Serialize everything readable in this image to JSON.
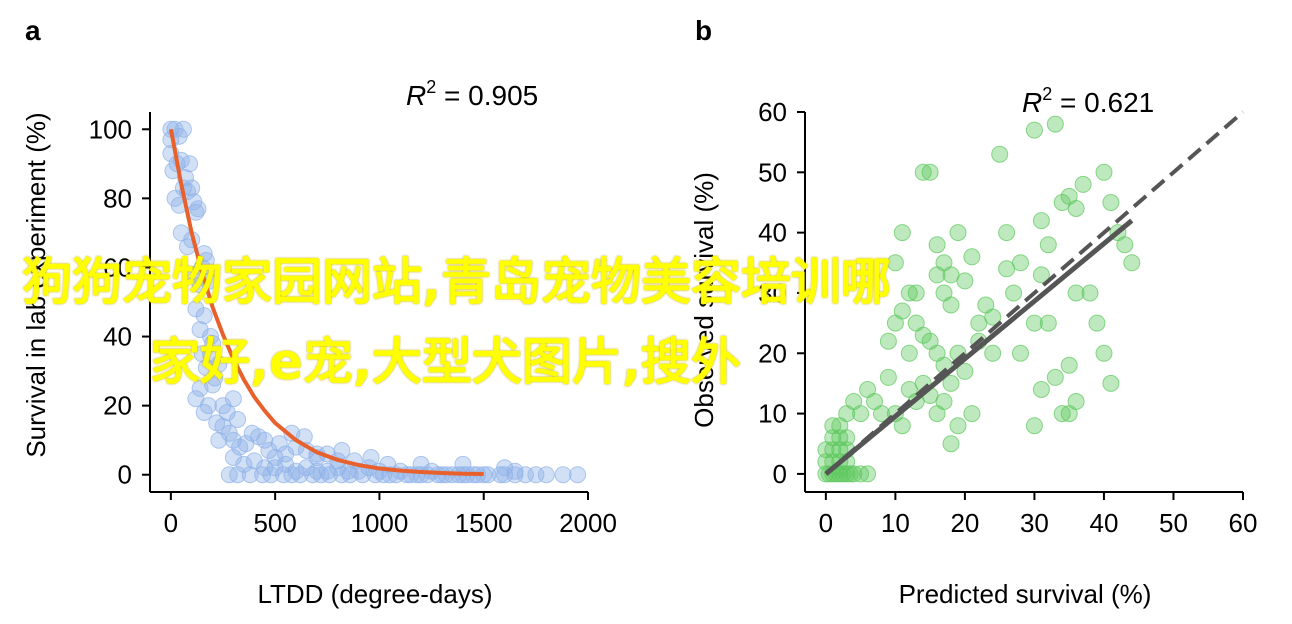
{
  "overlay": {
    "line1": "狗狗宠物家园网站,青岛宠物美容培训哪",
    "line2": "家好,e宠,大型犬图片,搜外"
  },
  "colors": {
    "panel_a_points": "#8fb2e8",
    "panel_a_curve": "#e8602c",
    "panel_b_points": "#5cc85c",
    "panel_b_fit": "#555555",
    "overlay_text": "#ffff00"
  },
  "chart_data": [
    {
      "panel": "a",
      "type": "scatter",
      "annotation": {
        "R2_label": "R",
        "R2_sup": "2",
        "R2_text": " = 0.905"
      },
      "xlabel": "LTDD (degree-days)",
      "ylabel": "Survival in lab experiment (%)",
      "xlim": [
        -100,
        2000
      ],
      "ylim": [
        -5,
        105
      ],
      "xticks": [
        "0",
        "500",
        "1000",
        "1500",
        "2000"
      ],
      "yticks": [
        "0",
        "20",
        "40",
        "60",
        "80",
        "100"
      ],
      "xtick_values": [
        0,
        500,
        1000,
        1500,
        2000
      ],
      "ytick_values": [
        0,
        20,
        40,
        60,
        80,
        100
      ],
      "grid": false,
      "series": [
        {
          "role": "observations",
          "points": [
            [
              0,
              100
            ],
            [
              0,
              97
            ],
            [
              0,
              93
            ],
            [
              20,
              100
            ],
            [
              40,
              98
            ],
            [
              60,
              100
            ],
            [
              10,
              88
            ],
            [
              30,
              90
            ],
            [
              50,
              91
            ],
            [
              70,
              86
            ],
            [
              90,
              90
            ],
            [
              20,
              80
            ],
            [
              40,
              78
            ],
            [
              60,
              83
            ],
            [
              80,
              82
            ],
            [
              100,
              83
            ],
            [
              110,
              79
            ],
            [
              120,
              76
            ],
            [
              130,
              77
            ],
            [
              50,
              70
            ],
            [
              80,
              66
            ],
            [
              100,
              68
            ],
            [
              110,
              58
            ],
            [
              140,
              55
            ],
            [
              150,
              60
            ],
            [
              160,
              64
            ],
            [
              170,
              62
            ],
            [
              180,
              56
            ],
            [
              120,
              48
            ],
            [
              140,
              42
            ],
            [
              160,
              46
            ],
            [
              190,
              40
            ],
            [
              200,
              38
            ],
            [
              150,
              35
            ],
            [
              170,
              31
            ],
            [
              190,
              35
            ],
            [
              210,
              28
            ],
            [
              230,
              32
            ],
            [
              120,
              22
            ],
            [
              140,
              25
            ],
            [
              160,
              18
            ],
            [
              180,
              20
            ],
            [
              200,
              26
            ],
            [
              220,
              15
            ],
            [
              250,
              20
            ],
            [
              270,
              18
            ],
            [
              300,
              22
            ],
            [
              320,
              16
            ],
            [
              280,
              12
            ],
            [
              250,
              14
            ],
            [
              230,
              10
            ],
            [
              300,
              10
            ],
            [
              330,
              8
            ],
            [
              360,
              9
            ],
            [
              390,
              12
            ],
            [
              420,
              11
            ],
            [
              450,
              10
            ],
            [
              470,
              7
            ],
            [
              520,
              9
            ],
            [
              550,
              6
            ],
            [
              500,
              5
            ],
            [
              600,
              8
            ],
            [
              650,
              7
            ],
            [
              700,
              5
            ],
            [
              750,
              6
            ],
            [
              800,
              4
            ],
            [
              300,
              5
            ],
            [
              350,
              3
            ],
            [
              400,
              4
            ],
            [
              450,
              2
            ],
            [
              500,
              2
            ],
            [
              550,
              3
            ],
            [
              600,
              1
            ],
            [
              650,
              2
            ],
            [
              700,
              1
            ],
            [
              750,
              1
            ],
            [
              800,
              2
            ],
            [
              850,
              1
            ],
            [
              900,
              1
            ],
            [
              950,
              2
            ],
            [
              1000,
              1
            ],
            [
              1050,
              0
            ],
            [
              1100,
              1
            ],
            [
              1150,
              0
            ],
            [
              1200,
              0
            ],
            [
              1250,
              1
            ],
            [
              1300,
              0
            ],
            [
              1350,
              0
            ],
            [
              1400,
              0
            ],
            [
              1450,
              0
            ],
            [
              1500,
              0
            ],
            [
              280,
              0
            ],
            [
              320,
              0
            ],
            [
              380,
              0
            ],
            [
              440,
              0
            ],
            [
              480,
              0
            ],
            [
              540,
              0
            ],
            [
              580,
              0
            ],
            [
              620,
              0
            ],
            [
              680,
              0
            ],
            [
              720,
              0
            ],
            [
              760,
              0
            ],
            [
              820,
              0
            ],
            [
              860,
              0
            ],
            [
              920,
              0
            ],
            [
              980,
              0
            ],
            [
              1020,
              0
            ],
            [
              1080,
              0
            ],
            [
              1130,
              0
            ],
            [
              1180,
              0
            ],
            [
              1230,
              0
            ],
            [
              1280,
              0
            ],
            [
              1320,
              0
            ],
            [
              1380,
              0
            ],
            [
              1420,
              0
            ],
            [
              1470,
              0
            ],
            [
              1520,
              0
            ],
            [
              1580,
              0
            ],
            [
              1600,
              0
            ],
            [
              1650,
              1
            ],
            [
              1700,
              0
            ],
            [
              1750,
              0
            ],
            [
              1800,
              0
            ],
            [
              1880,
              0
            ],
            [
              1950,
              0
            ],
            [
              1650,
              0
            ],
            [
              580,
              12
            ],
            [
              640,
              11
            ],
            [
              700,
              6
            ],
            [
              820,
              7
            ],
            [
              880,
              4
            ],
            [
              960,
              5
            ],
            [
              1040,
              3
            ],
            [
              1200,
              3
            ],
            [
              1400,
              3
            ],
            [
              1600,
              2
            ]
          ]
        },
        {
          "role": "fitted-curve",
          "x": [
            0,
            50,
            100,
            150,
            200,
            250,
            300,
            350,
            400,
            450,
            500,
            600,
            700,
            800,
            900,
            1000,
            1100,
            1200,
            1300,
            1400,
            1500
          ],
          "y": [
            100,
            84,
            70,
            58.5,
            48.5,
            40.5,
            33.5,
            27.5,
            22.5,
            18.5,
            15,
            10,
            6.5,
            4.3,
            2.8,
            1.8,
            1.2,
            0.8,
            0.5,
            0.3,
            0.2
          ]
        }
      ]
    },
    {
      "panel": "b",
      "type": "scatter",
      "annotation": {
        "R2_label": "R",
        "R2_sup": "2",
        "R2_text": " = 0.621"
      },
      "xlabel": "Predicted survival (%)",
      "ylabel": "Observed survival (%)",
      "xlim": [
        -3,
        60
      ],
      "ylim": [
        -3,
        60
      ],
      "xticks": [
        "0",
        "10",
        "20",
        "30",
        "40",
        "50",
        "60"
      ],
      "yticks": [
        "0",
        "10",
        "20",
        "30",
        "40",
        "50",
        "60"
      ],
      "xtick_values": [
        0,
        10,
        20,
        30,
        40,
        50,
        60
      ],
      "ytick_values": [
        0,
        10,
        20,
        30,
        40,
        50,
        60
      ],
      "grid": false,
      "series": [
        {
          "role": "observations",
          "points": [
            [
              0,
              0
            ],
            [
              0.5,
              0
            ],
            [
              1,
              0
            ],
            [
              1.5,
              0
            ],
            [
              2,
              0
            ],
            [
              2.5,
              0
            ],
            [
              3,
              0
            ],
            [
              3.5,
              0
            ],
            [
              4,
              0
            ],
            [
              5,
              0
            ],
            [
              6,
              0
            ],
            [
              0,
              2
            ],
            [
              1,
              2
            ],
            [
              2,
              2
            ],
            [
              3,
              2
            ],
            [
              0,
              4
            ],
            [
              1,
              4
            ],
            [
              2,
              4
            ],
            [
              3,
              4
            ],
            [
              1,
              6
            ],
            [
              2,
              6
            ],
            [
              3,
              6
            ],
            [
              1,
              8
            ],
            [
              2,
              8
            ],
            [
              3,
              10
            ],
            [
              4,
              12
            ],
            [
              5,
              10
            ],
            [
              6,
              14
            ],
            [
              7,
              12
            ],
            [
              8,
              10
            ],
            [
              9,
              16
            ],
            [
              10,
              10
            ],
            [
              11,
              8
            ],
            [
              12,
              14
            ],
            [
              13,
              12
            ],
            [
              14,
              15
            ],
            [
              15,
              13
            ],
            [
              16,
              10
            ],
            [
              17,
              12
            ],
            [
              18,
              15
            ],
            [
              13,
              25
            ],
            [
              14,
              23
            ],
            [
              15,
              22
            ],
            [
              16,
              20
            ],
            [
              17,
              18
            ],
            [
              9,
              22
            ],
            [
              10,
              25
            ],
            [
              11,
              27
            ],
            [
              12,
              20
            ],
            [
              13,
              30
            ],
            [
              14,
              50
            ],
            [
              15,
              50
            ],
            [
              16,
              38
            ],
            [
              17,
              35
            ],
            [
              18,
              28
            ],
            [
              19,
              40
            ],
            [
              20,
              32
            ],
            [
              21,
              36
            ],
            [
              22,
              22
            ],
            [
              23,
              28
            ],
            [
              24,
              26
            ],
            [
              25,
              53
            ],
            [
              26,
              34
            ],
            [
              27,
              30
            ],
            [
              28,
              20
            ],
            [
              30,
              25
            ],
            [
              31,
              42
            ],
            [
              32,
              38
            ],
            [
              33,
              58
            ],
            [
              34,
              45
            ],
            [
              35,
              46
            ],
            [
              36,
              44
            ],
            [
              37,
              48
            ],
            [
              38,
              30
            ],
            [
              39,
              25
            ],
            [
              40,
              50
            ],
            [
              41,
              45
            ],
            [
              42,
              40
            ],
            [
              43,
              38
            ],
            [
              44,
              35
            ],
            [
              30,
              57
            ],
            [
              31,
              33
            ],
            [
              32,
              25
            ],
            [
              33,
              16
            ],
            [
              34,
              10
            ],
            [
              35,
              18
            ],
            [
              36,
              12
            ],
            [
              30,
              8
            ],
            [
              31,
              14
            ],
            [
              35,
              10
            ],
            [
              36,
              30
            ],
            [
              40,
              20
            ],
            [
              41,
              15
            ],
            [
              18,
              33
            ],
            [
              19,
              20
            ],
            [
              20,
              17
            ],
            [
              21,
              10
            ],
            [
              10,
              35
            ],
            [
              11,
              40
            ],
            [
              12,
              30
            ],
            [
              22,
              25
            ],
            [
              24,
              20
            ],
            [
              26,
              40
            ],
            [
              28,
              35
            ],
            [
              16,
              33
            ],
            [
              17,
              30
            ],
            [
              18,
              5
            ],
            [
              19,
              8
            ]
          ]
        },
        {
          "role": "fit-line",
          "x": [
            0,
            44
          ],
          "y": [
            0,
            42
          ]
        },
        {
          "role": "one-to-one-line",
          "x": [
            0,
            60
          ],
          "y": [
            0,
            60
          ]
        }
      ]
    }
  ]
}
